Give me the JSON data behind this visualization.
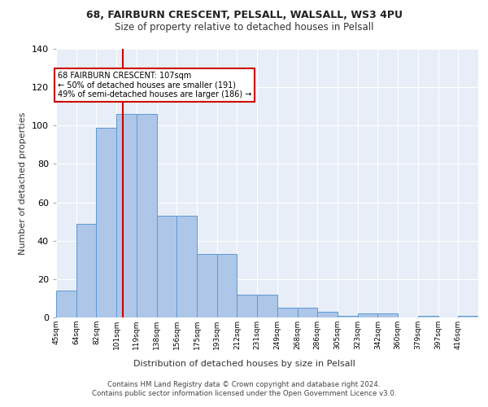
{
  "title1": "68, FAIRBURN CRESCENT, PELSALL, WALSALL, WS3 4PU",
  "title2": "Size of property relative to detached houses in Pelsall",
  "xlabel": "Distribution of detached houses by size in Pelsall",
  "ylabel": "Number of detached properties",
  "bar_values": [
    14,
    49,
    99,
    106,
    106,
    53,
    53,
    33,
    33,
    12,
    12,
    5,
    5,
    3,
    1,
    2,
    2,
    0,
    1,
    0,
    1
  ],
  "tick_labels": [
    "45sqm",
    "64sqm",
    "82sqm",
    "101sqm",
    "119sqm",
    "138sqm",
    "156sqm",
    "175sqm",
    "193sqm",
    "212sqm",
    "231sqm",
    "249sqm",
    "268sqm",
    "286sqm",
    "305sqm",
    "323sqm",
    "342sqm",
    "360sqm",
    "379sqm",
    "397sqm",
    "416sqm"
  ],
  "bar_color": "#aec6e8",
  "bar_edge_color": "#5b9bd5",
  "vline_color": "#cc0000",
  "annotation_text": "68 FAIRBURN CRESCENT: 107sqm\n← 50% of detached houses are smaller (191)\n49% of semi-detached houses are larger (186) →",
  "annotation_box_color": "#ffffff",
  "annotation_box_edge": "#cc0000",
  "ylim": [
    0,
    140
  ],
  "yticks": [
    0,
    20,
    40,
    60,
    80,
    100,
    120,
    140
  ],
  "background_color": "#e8eef7",
  "grid_color": "#ffffff",
  "footer": "Contains HM Land Registry data © Crown copyright and database right 2024.\nContains public sector information licensed under the Open Government Licence v3.0."
}
